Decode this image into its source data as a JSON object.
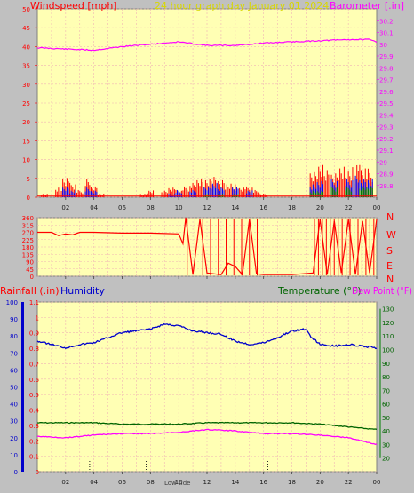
{
  "header": {
    "windspeed_label": "Windspeed [mph]",
    "graph_title": "24 hour graph day   January 01 2024",
    "barometer_label": "Barometer [.in]"
  },
  "panel2": {
    "compass": [
      "N",
      "W",
      "S",
      "E",
      "N"
    ]
  },
  "panel3": {
    "rainfall_label": "Rainfall (.in)",
    "humidity_label": "Humidity",
    "temperature_label": "Temperature (°F)",
    "dewpoint_label": "Dew Point (°F)",
    "marker_label": "Low tide"
  },
  "x_ticks": [
    "02",
    "04",
    "06",
    "08",
    "10",
    "12",
    "14",
    "16",
    "18",
    "20",
    "22",
    "00"
  ],
  "colors": {
    "background": "#c0c0c0",
    "plot": "#ffffb4",
    "grid": "#f0b4b4",
    "windspeed": "#ff0000",
    "gust": "#0000ff",
    "avg_wind": "#008000",
    "barometer": "#ff00ff",
    "humidity": "#0000cc",
    "temperature": "#006400",
    "dewpoint": "#ff00ff",
    "title": "#d8d800"
  },
  "chart_data": [
    {
      "type": "line",
      "title": "24 hour graph day   January 01 2024",
      "x_unit": "hour",
      "xlim": [
        0,
        24
      ],
      "ylabel": "Windspeed [mph]",
      "ylim": [
        0,
        50
      ],
      "y_ticks": [
        0,
        5,
        10,
        15,
        20,
        25,
        30,
        35,
        40,
        45,
        50
      ],
      "y2label": "Barometer [.in]",
      "y2lim": [
        28.7,
        30.3
      ],
      "y2_ticks": [
        "28.8",
        "28.9",
        "29",
        "29.1",
        "29.2",
        "29.3",
        "29.4",
        "29.5",
        "29.6",
        "29.7",
        "29.8",
        "29.9",
        "30",
        "30.1",
        "30.2"
      ],
      "grid": true,
      "series": [
        {
          "name": "Windspeed",
          "axis": "left",
          "style": "spiky bursts",
          "x": [
            0.5,
            1.5,
            2.0,
            2.5,
            3.0,
            3.5,
            4.0,
            4.5,
            5.0,
            7.5,
            8.0,
            9.0,
            9.5,
            10.0,
            10.5,
            11.0,
            11.5,
            12.0,
            12.5,
            13.0,
            13.5,
            14.0,
            14.5,
            15.0,
            15.5,
            16.0,
            19.5,
            20.0,
            20.5,
            21.0,
            21.5,
            22.0,
            22.5,
            23.0,
            23.5
          ],
          "y": [
            1,
            3,
            6,
            4,
            2,
            5,
            3,
            1,
            0,
            1,
            2,
            2,
            3,
            2,
            3,
            4,
            5,
            5,
            6,
            5,
            4,
            4,
            3,
            3,
            2,
            1,
            7,
            9,
            8,
            7,
            9,
            8,
            10,
            9,
            8
          ]
        },
        {
          "name": "Gust",
          "axis": "left",
          "style": "spiky bursts",
          "x": [
            2.0,
            2.5,
            3.5,
            4.0,
            9.5,
            10.0,
            11.0,
            12.0,
            12.5,
            13.0,
            14.0,
            15.0,
            19.5,
            20.0,
            21.0,
            22.0,
            22.5,
            23.0,
            23.5
          ],
          "y": [
            3,
            2,
            3,
            2,
            1,
            2,
            2,
            3,
            4,
            3,
            3,
            2,
            4,
            5,
            5,
            5,
            6,
            5,
            5
          ]
        },
        {
          "name": "Average wind",
          "axis": "left",
          "style": "spiky bursts",
          "x": [
            12.0,
            13.0,
            14.0,
            19.5,
            20.0,
            21.0,
            22.0,
            23.0,
            23.5
          ],
          "y": [
            1,
            1,
            1,
            2,
            2,
            3,
            3,
            3,
            3
          ]
        },
        {
          "name": "Barometer",
          "axis": "right",
          "x": [
            0,
            2,
            4,
            6,
            8,
            10,
            12,
            14,
            16,
            18,
            20,
            22,
            23.5,
            24
          ],
          "y": [
            29.97,
            29.96,
            29.95,
            29.98,
            30.0,
            30.02,
            29.99,
            29.99,
            30.01,
            30.02,
            30.03,
            30.04,
            30.04,
            30.02
          ]
        }
      ]
    },
    {
      "type": "line",
      "xlim": [
        0,
        24
      ],
      "ylim": [
        0,
        360
      ],
      "y_ticks": [
        0,
        45,
        90,
        135,
        180,
        225,
        270,
        315,
        360
      ],
      "compass_labels": [
        "N",
        "W",
        "S",
        "E",
        "N"
      ],
      "grid": true,
      "series": [
        {
          "name": "Wind direction",
          "x": [
            0,
            1.0,
            1.5,
            2.0,
            2.5,
            3.0,
            4.0,
            6.0,
            8.0,
            10.0,
            10.3,
            10.5,
            11.0,
            11.5,
            12.0,
            13.0,
            13.5,
            14.0,
            14.5,
            15.0,
            15.5,
            16.0,
            18.0,
            19.5,
            20.0,
            20.5,
            21.0,
            21.5,
            22.0,
            22.5,
            23.0,
            23.5,
            24.0
          ],
          "y": [
            270,
            270,
            250,
            260,
            255,
            270,
            270,
            265,
            265,
            260,
            200,
            360,
            10,
            350,
            20,
            10,
            80,
            60,
            10,
            350,
            15,
            10,
            10,
            20,
            350,
            10,
            340,
            20,
            350,
            10,
            340,
            20,
            350
          ]
        }
      ]
    },
    {
      "type": "line",
      "xlim": [
        0,
        24
      ],
      "ylabel": "Rainfall (.in)",
      "ylim": [
        0,
        1.1
      ],
      "y_ticks": [
        "0",
        "0.1",
        "0.2",
        "0.3",
        "0.4",
        "0.5",
        "0.6",
        "0.7",
        "0.8",
        "0.9",
        "1",
        "1.1"
      ],
      "humidity_ylim": [
        0,
        100
      ],
      "humidity_ticks": [
        0,
        10,
        20,
        30,
        40,
        50,
        60,
        70,
        80,
        90,
        100
      ],
      "y2label": "Temperature (°F) / Dew Point (°F)",
      "y2lim": [
        10,
        135
      ],
      "y2_ticks": [
        20,
        30,
        40,
        50,
        60,
        70,
        80,
        90,
        100,
        110,
        120,
        130
      ],
      "grid": true,
      "series": [
        {
          "name": "Humidity",
          "axis": "humidity",
          "x": [
            0,
            1,
            2,
            3,
            4,
            6,
            8,
            9,
            10,
            11,
            12,
            13,
            14,
            15,
            16,
            17,
            18,
            19,
            19.3,
            20,
            21,
            22,
            23,
            24
          ],
          "y": [
            77,
            75,
            73,
            75,
            76,
            82,
            84,
            87,
            86,
            83,
            82,
            81,
            77,
            75,
            76,
            79,
            83,
            84,
            80,
            75,
            74,
            75,
            74,
            73
          ]
        },
        {
          "name": "Temperature",
          "axis": "right",
          "x": [
            0,
            2,
            4,
            6,
            8,
            10,
            12,
            14,
            16,
            18,
            20,
            22,
            24
          ],
          "y": [
            46,
            46,
            46,
            45,
            45,
            45,
            46,
            46,
            46,
            46,
            45,
            43,
            41
          ]
        },
        {
          "name": "Dew Point",
          "axis": "right",
          "x": [
            0,
            2,
            4,
            6,
            8,
            10,
            12,
            14,
            16,
            18,
            20,
            22,
            24
          ],
          "y": [
            36,
            35,
            37,
            38,
            38,
            39,
            41,
            40,
            38,
            38,
            37,
            35,
            30
          ]
        }
      ],
      "markers": [
        {
          "label": "Low tide",
          "x": 3.7
        },
        {
          "label": "",
          "x": 7.7
        },
        {
          "label": "",
          "x": 16.3
        }
      ]
    }
  ]
}
